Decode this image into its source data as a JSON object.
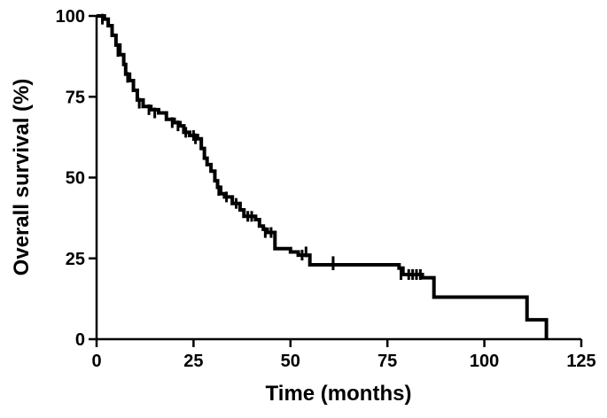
{
  "chart_data": {
    "type": "line",
    "subtype": "kaplan-meier step curve",
    "title": "",
    "xlabel": "Time (months)",
    "ylabel": "Overall survival (%)",
    "xlim": [
      0,
      125
    ],
    "ylim": [
      0,
      100
    ],
    "xticks": [
      0,
      25,
      50,
      75,
      100,
      125
    ],
    "yticks": [
      0,
      25,
      50,
      75,
      100
    ],
    "grid": false,
    "legend": "none",
    "line_color": "#000000",
    "series": [
      {
        "step_points": [
          [
            0,
            100
          ],
          [
            2,
            99
          ],
          [
            3,
            97
          ],
          [
            4,
            94
          ],
          [
            5,
            91
          ],
          [
            6,
            88
          ],
          [
            7,
            85
          ],
          [
            7.5,
            82
          ],
          [
            8.5,
            80
          ],
          [
            9.5,
            77
          ],
          [
            10.5,
            74
          ],
          [
            12,
            72
          ],
          [
            14,
            71
          ],
          [
            16,
            70
          ],
          [
            18,
            68
          ],
          [
            20,
            67
          ],
          [
            21.5,
            66
          ],
          [
            22.5,
            64
          ],
          [
            24,
            63
          ],
          [
            26,
            62
          ],
          [
            27,
            59
          ],
          [
            27.8,
            56
          ],
          [
            28.5,
            54
          ],
          [
            29.5,
            52
          ],
          [
            30.5,
            49
          ],
          [
            31.2,
            47
          ],
          [
            32,
            45
          ],
          [
            33,
            44
          ],
          [
            35,
            42
          ],
          [
            37,
            40
          ],
          [
            38,
            38
          ],
          [
            41,
            37
          ],
          [
            42,
            35
          ],
          [
            43,
            34
          ],
          [
            44,
            33
          ],
          [
            46,
            28
          ],
          [
            50,
            27
          ],
          [
            52,
            26
          ],
          [
            55,
            23
          ],
          [
            78,
            22
          ],
          [
            79,
            20
          ],
          [
            84,
            19
          ],
          [
            87,
            13
          ],
          [
            111,
            6
          ],
          [
            116,
            0
          ]
        ],
        "censor_points": [
          [
            1.5,
            99
          ],
          [
            5.5,
            89
          ],
          [
            8,
            81
          ],
          [
            11,
            73
          ],
          [
            13.5,
            71
          ],
          [
            15,
            70
          ],
          [
            19.5,
            67
          ],
          [
            21,
            66
          ],
          [
            23,
            64
          ],
          [
            25,
            63
          ],
          [
            25.5,
            62
          ],
          [
            31.5,
            46
          ],
          [
            33.5,
            44
          ],
          [
            36,
            42
          ],
          [
            39,
            38
          ],
          [
            40,
            38
          ],
          [
            43.5,
            33
          ],
          [
            45,
            33
          ],
          [
            53,
            26
          ],
          [
            54,
            27
          ],
          [
            61,
            23
          ],
          [
            61,
            24
          ],
          [
            78.5,
            20
          ],
          [
            80.5,
            20
          ],
          [
            81.5,
            20
          ],
          [
            82.5,
            20
          ],
          [
            83.5,
            20
          ]
        ]
      }
    ]
  }
}
